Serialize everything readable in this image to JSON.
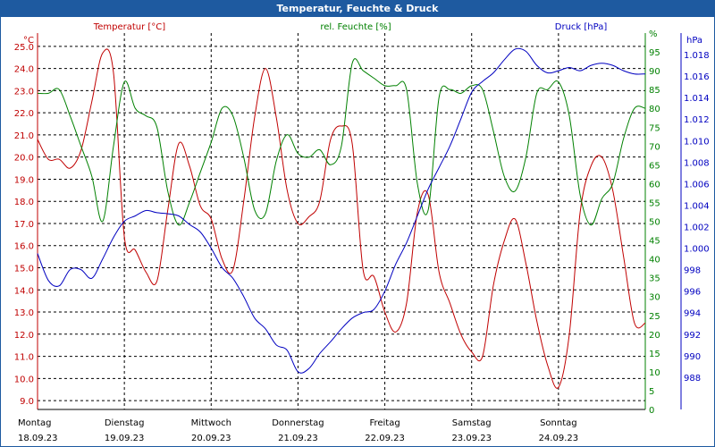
{
  "window_title": "Temperatur, Feuchte & Druck",
  "colors": {
    "temperature": "#c00000",
    "humidity": "#008000",
    "pressure": "#0000c0",
    "grid": "#000000",
    "titlebar": "#1e5aa0"
  },
  "chart_data": {
    "type": "line",
    "title": "Temperatur, Feuchte & Druck",
    "legend": [
      "Temperatur [°C]",
      "rel. Feuchte [%]",
      "Druck [hPa]"
    ],
    "x_range": [
      0,
      168
    ],
    "x_unit": "hours since 18.09.23 00:00",
    "x_ticks": [
      {
        "day": "Montag",
        "date": "18.09.23"
      },
      {
        "day": "Dienstag",
        "date": "19.09.23"
      },
      {
        "day": "Mittwoch",
        "date": "20.09.23"
      },
      {
        "day": "Donnerstag",
        "date": "21.09.23"
      },
      {
        "day": "Freitag",
        "date": "22.09.23"
      },
      {
        "day": "Samstag",
        "date": "23.09.23"
      },
      {
        "day": "Sonntag",
        "date": "24.09.23"
      }
    ],
    "axes": {
      "temperature": {
        "label": "°C",
        "range": [
          8.6,
          25.6
        ],
        "ticks": [
          "9.0",
          "10.0",
          "11.0",
          "12.0",
          "13.0",
          "14.0",
          "15.0",
          "16.0",
          "17.0",
          "18.0",
          "19.0",
          "20.0",
          "21.0",
          "22.0",
          "23.0",
          "24.0",
          "25.0"
        ]
      },
      "humidity": {
        "label": "%",
        "range": [
          0,
          100
        ],
        "ticks": [
          "0",
          "5",
          "10",
          "15",
          "20",
          "25",
          "30",
          "35",
          "40",
          "45",
          "50",
          "55",
          "60",
          "65",
          "70",
          "75",
          "80",
          "85",
          "90",
          "95",
          "%"
        ]
      },
      "pressure": {
        "label": "hPa",
        "range": [
          985,
          1020
        ],
        "ticks": [
          "988",
          "990",
          "992",
          "994",
          "996",
          "998",
          "1.000",
          "1.002",
          "1.004",
          "1.006",
          "1.008",
          "1.010",
          "1.012",
          "1.014",
          "1.016",
          "1.018"
        ]
      }
    },
    "series": [
      {
        "name": "Temperatur",
        "unit": "°C",
        "x": [
          0,
          3,
          6,
          9,
          12,
          15,
          18,
          21,
          24,
          27,
          30,
          33,
          36,
          39,
          42,
          45,
          48,
          51,
          54,
          57,
          60,
          63,
          66,
          69,
          72,
          75,
          78,
          81,
          84,
          87,
          90,
          93,
          96,
          99,
          102,
          105,
          108,
          111,
          114,
          117,
          120,
          123,
          126,
          129,
          132,
          135,
          138,
          141,
          144,
          147,
          150,
          153,
          156,
          159,
          162,
          165,
          168
        ],
        "values": [
          20.8,
          19.9,
          19.9,
          19.5,
          20.3,
          22.5,
          24.7,
          23.8,
          16.4,
          15.8,
          14.8,
          14.4,
          17.6,
          20.6,
          19.6,
          17.8,
          17.2,
          15.4,
          14.9,
          18.0,
          21.8,
          24.0,
          21.8,
          18.5,
          17.0,
          17.3,
          18.0,
          20.8,
          21.4,
          20.6,
          14.9,
          14.6,
          13.0,
          12.1,
          13.4,
          17.5,
          18.3,
          14.8,
          13.4,
          12.0,
          11.2,
          11.0,
          14.2,
          16.2,
          17.2,
          15.2,
          12.6,
          10.6,
          9.6,
          12.0,
          17.5,
          19.6,
          20.0,
          18.5,
          15.5,
          12.5,
          12.5
        ]
      },
      {
        "name": "rel. Feuchte",
        "unit": "%",
        "x": [
          0,
          3,
          6,
          9,
          12,
          15,
          18,
          21,
          24,
          27,
          30,
          33,
          36,
          39,
          42,
          45,
          48,
          51,
          54,
          57,
          60,
          63,
          66,
          69,
          72,
          75,
          78,
          81,
          84,
          87,
          90,
          93,
          96,
          99,
          102,
          105,
          108,
          111,
          114,
          117,
          120,
          123,
          126,
          129,
          132,
          135,
          138,
          141,
          144,
          147,
          150,
          153,
          156,
          159,
          162,
          165,
          168
        ],
        "values": [
          84,
          84,
          85,
          78,
          70,
          62,
          50,
          70,
          87,
          80,
          78,
          75,
          58,
          49,
          55,
          63,
          71,
          80,
          78,
          67,
          53,
          52,
          66,
          73,
          68,
          67,
          69,
          65,
          70,
          92,
          90,
          88,
          86,
          86,
          85,
          60,
          53,
          83,
          85,
          84,
          86,
          85,
          74,
          62,
          58,
          67,
          84,
          85,
          87,
          78,
          57,
          49,
          56,
          60,
          72,
          80,
          80
        ]
      },
      {
        "name": "Druck",
        "unit": "hPa",
        "x": [
          0,
          3,
          6,
          9,
          12,
          15,
          18,
          21,
          24,
          27,
          30,
          33,
          36,
          39,
          42,
          45,
          48,
          51,
          54,
          57,
          60,
          63,
          66,
          69,
          72,
          75,
          78,
          81,
          84,
          87,
          90,
          93,
          96,
          99,
          102,
          105,
          108,
          111,
          114,
          117,
          120,
          123,
          126,
          129,
          132,
          135,
          138,
          141,
          144,
          147,
          150,
          153,
          156,
          159,
          162,
          165,
          168
        ],
        "values": [
          999.5,
          997.0,
          996.5,
          998.0,
          998.0,
          997.2,
          999.0,
          1001.0,
          1002.5,
          1003.0,
          1003.5,
          1003.3,
          1003.2,
          1003.0,
          1002.2,
          1001.5,
          1000.0,
          998.2,
          997.2,
          995.5,
          993.5,
          992.5,
          991.0,
          990.5,
          988.5,
          988.8,
          990.2,
          991.3,
          992.5,
          993.5,
          994.0,
          994.3,
          996.0,
          998.5,
          1000.5,
          1003.0,
          1005.5,
          1007.5,
          1009.5,
          1012.0,
          1014.5,
          1015.5,
          1016.3,
          1017.5,
          1018.5,
          1018.3,
          1017.0,
          1016.3,
          1016.5,
          1016.8,
          1016.5,
          1017.0,
          1017.2,
          1017.0,
          1016.5,
          1016.2,
          1016.2
        ]
      }
    ]
  }
}
